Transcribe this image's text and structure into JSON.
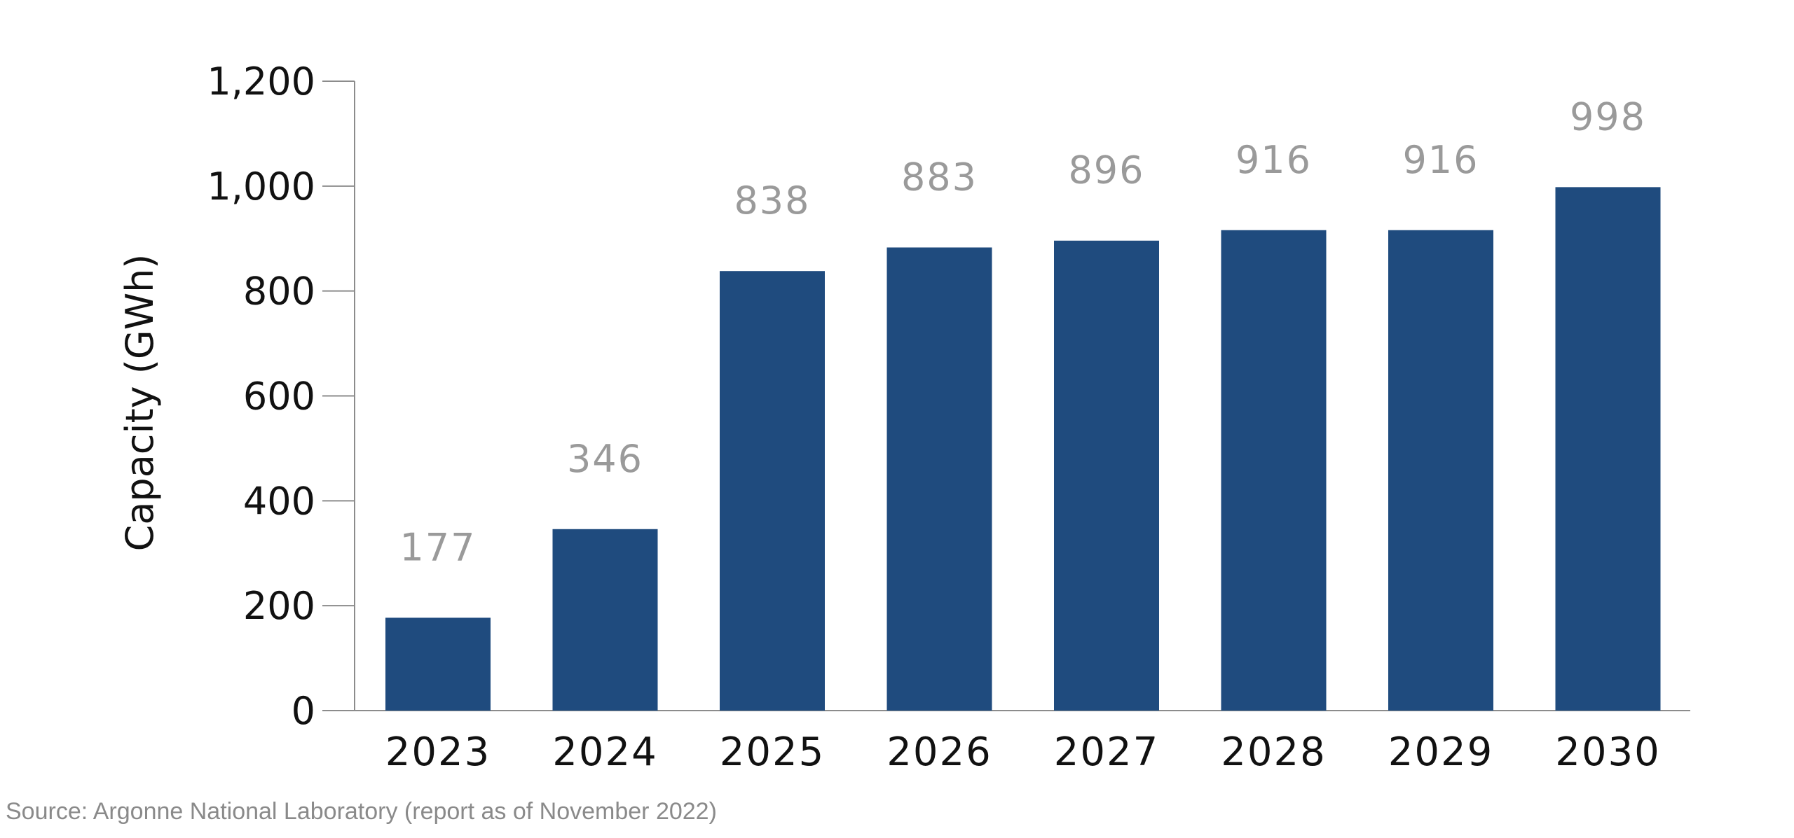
{
  "chart_data": {
    "type": "bar",
    "categories": [
      "2023",
      "2024",
      "2025",
      "2026",
      "2027",
      "2028",
      "2029",
      "2030"
    ],
    "values": [
      177,
      346,
      838,
      883,
      896,
      916,
      916,
      998
    ],
    "data_labels": [
      "177",
      "346",
      "838",
      "883",
      "896",
      "916",
      "916",
      "998"
    ],
    "ylabel": "Capacity (GWh)",
    "xlabel": "",
    "ylim": [
      0,
      1200
    ],
    "yticks": [
      0,
      200,
      400,
      600,
      800,
      1000,
      1200
    ],
    "ytick_labels": [
      "0",
      "200",
      "400",
      "600",
      "800",
      "1,000",
      "1,200"
    ],
    "grid": false,
    "colors": {
      "bar": "#1f4b7e",
      "axis": "#8c8c8c",
      "data_label": "#9a9a9a",
      "text": "#111111"
    }
  },
  "source_note": "Source: Argonne National Laboratory (report as of November 2022)"
}
